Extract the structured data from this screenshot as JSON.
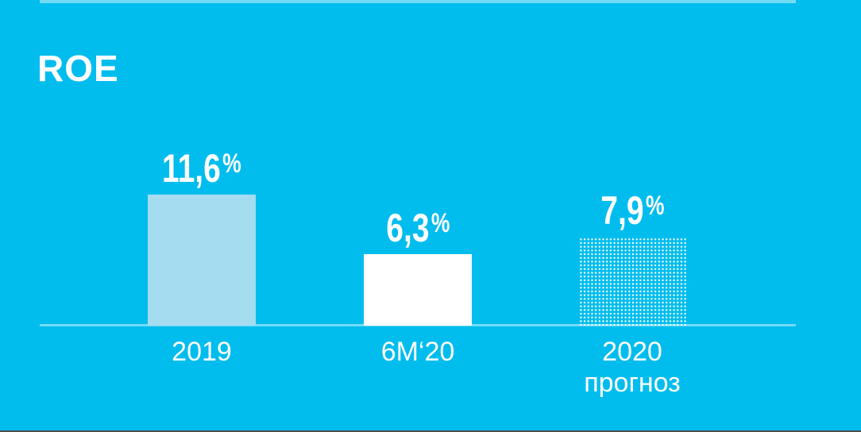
{
  "title": "ROE",
  "colors": {
    "background": "#00bdee",
    "text": "#ffffff",
    "bar_2019": "#a5dcf0",
    "bar_6m20": "#ffffff",
    "bar_forecast_dots": "#ffffff",
    "accent_lines": "rgba(255,255,255,0.45)",
    "bottom_edge": "#4f4f4f"
  },
  "chart_data": {
    "type": "bar",
    "title": "ROE",
    "categories": [
      "2019",
      "6M‘20",
      "2020\nпрогноз"
    ],
    "values": [
      11.6,
      6.3,
      7.9
    ],
    "value_labels": [
      "11,6",
      "6,3",
      "7,9"
    ],
    "unit_symbol": "%",
    "ylabel": "",
    "xlabel": "",
    "ylim": [
      0,
      12
    ],
    "grid": false,
    "legend": false,
    "bar_styles": [
      "solid-lightblue",
      "solid-white",
      "dotted-outline"
    ],
    "bar_ids": [
      "bar-2019",
      "bar-6m20",
      "bar-2020-forecast"
    ],
    "notes": "third bar is a dotted-pattern forecast bar"
  }
}
